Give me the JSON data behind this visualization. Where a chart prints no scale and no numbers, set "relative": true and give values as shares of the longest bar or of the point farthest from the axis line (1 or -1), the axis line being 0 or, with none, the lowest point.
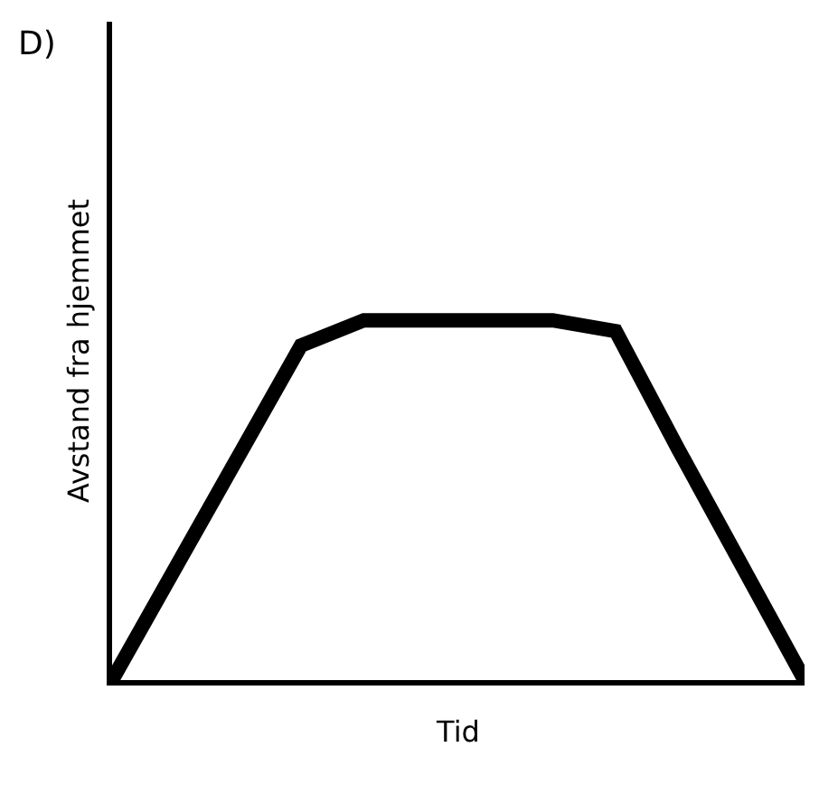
{
  "chart_data": {
    "type": "line",
    "title": "D)",
    "xlabel": "Tid",
    "ylabel": "Avstand fra hjemmet",
    "relative": true,
    "categories": [
      null,
      null,
      null,
      null,
      null,
      null,
      null,
      null,
      null,
      null,
      null,
      null
    ],
    "series": [
      {
        "color": "#000000",
        "values": [
          0,
          0.31,
          0.62,
          0.93,
          1,
          1,
          1,
          1,
          0.97,
          0.64,
          0.32,
          0
        ]
      }
    ]
  }
}
